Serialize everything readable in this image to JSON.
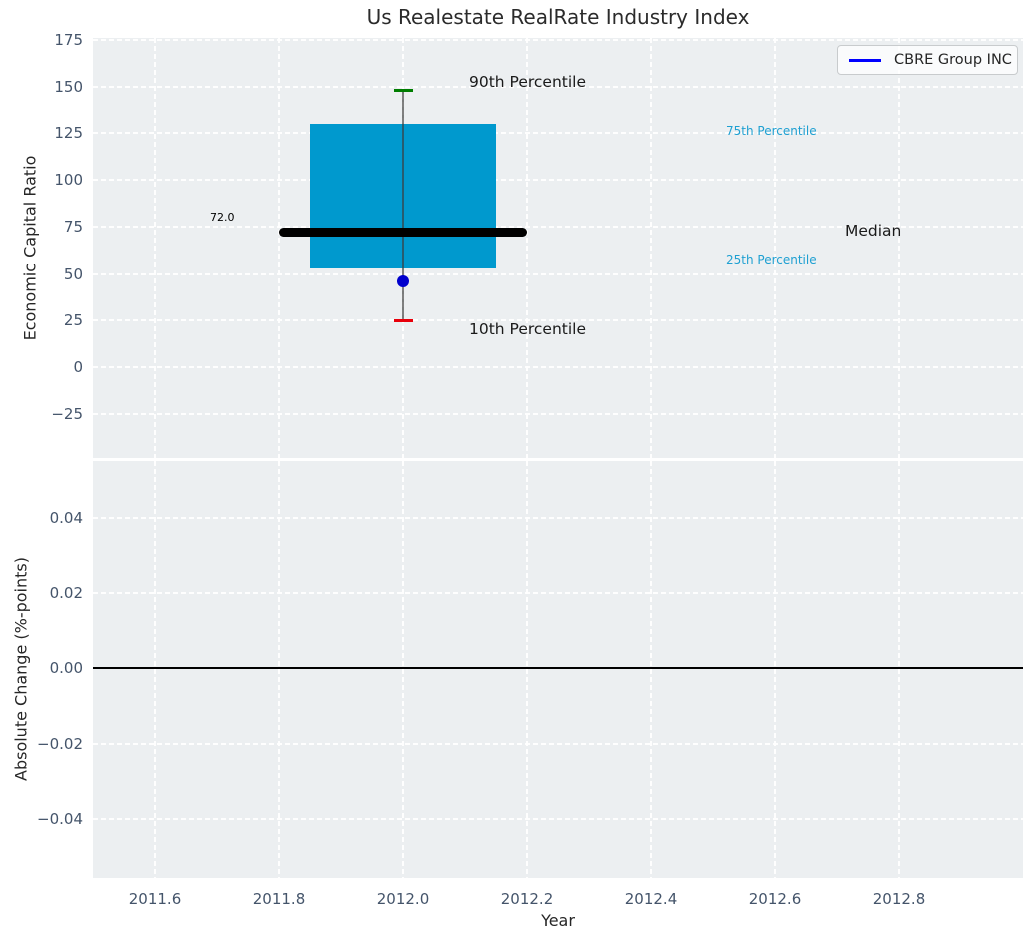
{
  "title": "Us Realestate RealRate Industry Index",
  "legend": {
    "label": "CBRE Group INC",
    "line_color": "#0000ff",
    "position": "upper right"
  },
  "colors": {
    "axes_background": "#eceff1",
    "grid": "#ffffff",
    "box_fill": "#0099ce",
    "median_line": "#000000",
    "whisker": "#3c3c3c",
    "cap_90th": "#007d00",
    "cap_10th": "#e8000b",
    "company_point": "#0000cd",
    "tick_label": "#44546a",
    "percentile_label": "#1fa0d2",
    "zero_line": "#000000"
  },
  "xlim": [
    2011.5,
    2013.0
  ],
  "chart_data": [
    {
      "type": "boxplot",
      "title": "Us Realestate RealRate Industry Index",
      "ylabel": "Economic Capital Ratio",
      "ylim": [
        -48.5,
        176
      ],
      "yticks": {
        "values": [
          175,
          150,
          125,
          100,
          75,
          50,
          25,
          0,
          -25
        ],
        "labels": [
          "175",
          "150",
          "125",
          "100",
          "75",
          "50",
          "25",
          "0",
          "−25"
        ]
      },
      "grid": "white dashed",
      "box": {
        "x_center": 2012.0,
        "box_left": 2011.85,
        "box_right": 2012.15,
        "median_left": 2011.8,
        "median_right": 2012.2,
        "p10": 25,
        "p25": 53,
        "median": 72,
        "p75": 130,
        "p90": 148
      },
      "company_point": {
        "name": "CBRE Group INC",
        "x": 2012.0,
        "value": 46
      },
      "annotations": {
        "p90_label": "90th Percentile",
        "p75_label": "75th Percentile",
        "median_label": "Median",
        "median_value_label": "72.0",
        "p25_label": "25th Percentile",
        "p10_label": "10th Percentile"
      }
    },
    {
      "type": "line",
      "ylabel": "Absolute Change (%-points)",
      "xlabel": "Year",
      "ylim": [
        -0.0558,
        0.0552
      ],
      "yticks": {
        "values": [
          0.04,
          0.02,
          0.0,
          -0.02,
          -0.04
        ],
        "labels": [
          "0.04",
          "0.02",
          "0.00",
          "−0.02",
          "−0.04"
        ]
      },
      "xticks": {
        "values": [
          2011.6,
          2011.8,
          2012.0,
          2012.2,
          2012.4,
          2012.6,
          2012.8
        ],
        "labels": [
          "2011.6",
          "2011.8",
          "2012.0",
          "2012.2",
          "2012.4",
          "2012.6",
          "2012.8"
        ]
      },
      "zero_line": 0.0,
      "grid": "white dashed"
    }
  ]
}
